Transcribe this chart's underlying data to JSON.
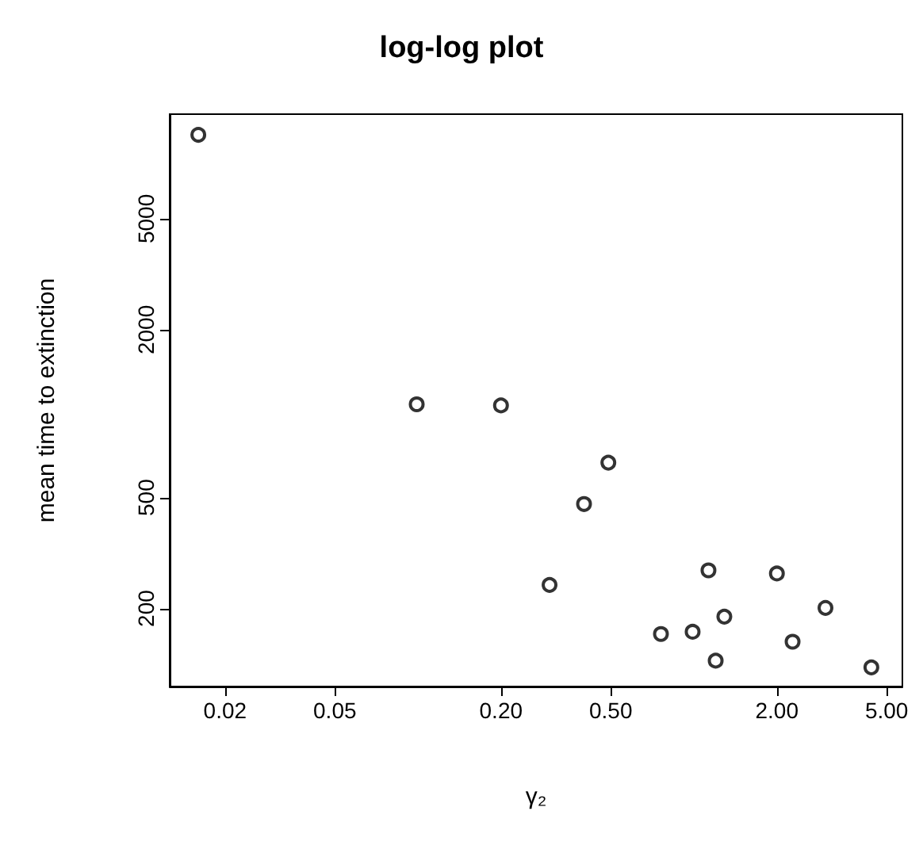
{
  "chart_data": {
    "type": "scatter",
    "title": "log-log plot",
    "xlabel": "γ₂",
    "ylabel": "mean time to extinction",
    "x": [
      0.016,
      0.099,
      0.2,
      0.3,
      0.4,
      0.49,
      0.76,
      0.99,
      1.13,
      1.2,
      1.29,
      2.0,
      2.28,
      3.0,
      4.4
    ],
    "series": [
      {
        "color": "#000000",
        "values": [
          10000,
          1080,
          1070,
          243,
          474,
          667,
          162,
          165,
          274,
          130,
          187,
          267,
          152,
          201,
          123
        ]
      }
    ],
    "log": "xy",
    "xlim": [
      0.0126,
      5.7
    ],
    "ylim": [
      105,
      11860
    ],
    "xticks": [
      0.02,
      0.05,
      {
        "value": 0.2,
        "label": "0.20"
      },
      {
        "value": 0.5,
        "label": "0.50"
      },
      {
        "value": 2,
        "label": "2.00"
      },
      {
        "value": 5,
        "label": "5.00"
      }
    ],
    "yticks": [
      200,
      500,
      2000,
      5000
    ],
    "grid": false,
    "marker": "circle"
  }
}
